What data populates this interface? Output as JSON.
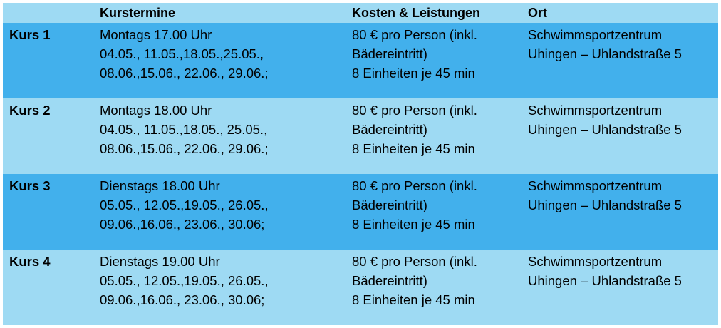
{
  "header": {
    "col1": "",
    "col2": "Kurstermine",
    "col3": "Kosten & Leistungen",
    "col4": "Ort"
  },
  "courses": [
    {
      "name": "Kurs 1",
      "dates": [
        "Montags 17.00 Uhr",
        "04.05., 11.05.,18.05.,25.05.,",
        "08.06.,15.06., 22.06., 29.06.;"
      ],
      "costs": [
        "80 € pro Person (inkl.",
        "Bädereintritt)",
        "8 Einheiten je 45 min"
      ],
      "place": [
        "Schwimmsportzentrum",
        "Uhingen – Uhlandstraße 5"
      ]
    },
    {
      "name": "Kurs 2",
      "dates": [
        "Montags 18.00 Uhr",
        "04.05., 11.05.,18.05., 25.05.,",
        "08.06.,15.06., 22.06., 29.06.;"
      ],
      "costs": [
        "80 € pro Person (inkl.",
        "Bädereintritt)",
        "8 Einheiten je 45 min"
      ],
      "place": [
        "Schwimmsportzentrum",
        "Uhingen – Uhlandstraße 5"
      ]
    },
    {
      "name": "Kurs 3",
      "dates": [
        "Dienstags 18.00 Uhr",
        "05.05., 12.05.,19.05., 26.05.,",
        "09.06.,16.06., 23.06., 30.06;"
      ],
      "costs": [
        "80 € pro Person (inkl.",
        "Bädereintritt)",
        "8 Einheiten je 45 min"
      ],
      "place": [
        "Schwimmsportzentrum",
        "Uhingen – Uhlandstraße 5"
      ]
    },
    {
      "name": "Kurs 4",
      "dates": [
        "Dienstags 19.00 Uhr",
        "05.05., 12.05.,19.05., 26.05.,",
        "09.06.,16.06., 23.06., 30.06;"
      ],
      "costs": [
        "80 € pro Person (inkl.",
        "Bädereintritt)",
        "8 Einheiten je 45 min"
      ],
      "place": [
        "Schwimmsportzentrum",
        "Uhingen – Uhlandstraße 5"
      ]
    }
  ],
  "colors": {
    "dark_row": "#42b0ec",
    "light_row": "#9edaf3"
  }
}
